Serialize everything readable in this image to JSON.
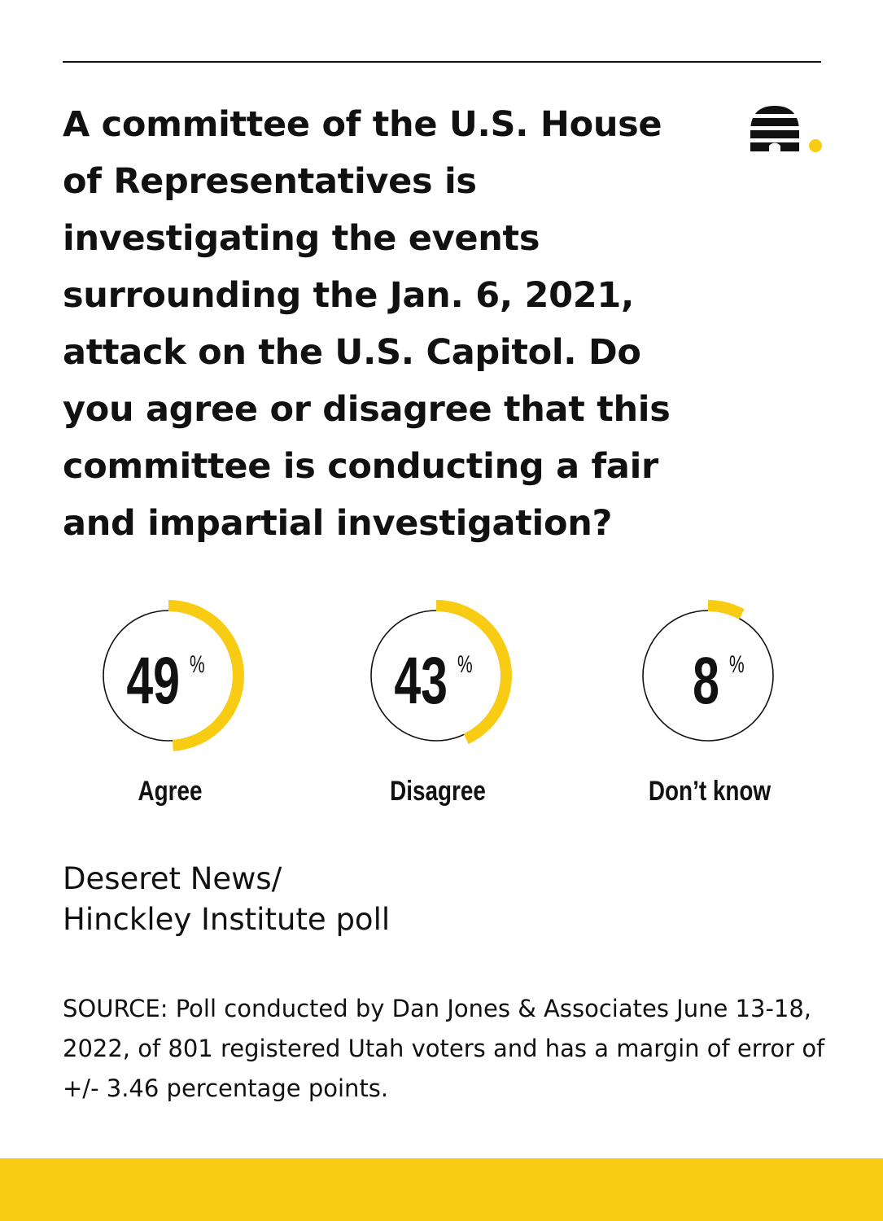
{
  "question": "A committee of the U.S. House of Representatives is investigating the events surrounding the Jan. 6, 2021, attack on the U.S. Capitol. Do you agree or disagree that this committee is conducting a fair and impartial investigation?",
  "logo_icon": "beehive-icon",
  "colors": {
    "accent": "#f9cc14",
    "ink": "#111111",
    "background": "#ffffff"
  },
  "chart_data": {
    "type": "pie",
    "unit": "%",
    "categories": [
      "Agree",
      "Disagree",
      "Don’t know"
    ],
    "values": [
      49,
      43,
      8
    ]
  },
  "poll_title": [
    "Deseret News/",
    "Hinckley Institute poll"
  ],
  "source": "SOURCE: Poll conducted by Dan Jones & Associates June 13-18, 2022, of 801 registered Utah voters and has a margin of error of +/- 3.46 percentage points."
}
